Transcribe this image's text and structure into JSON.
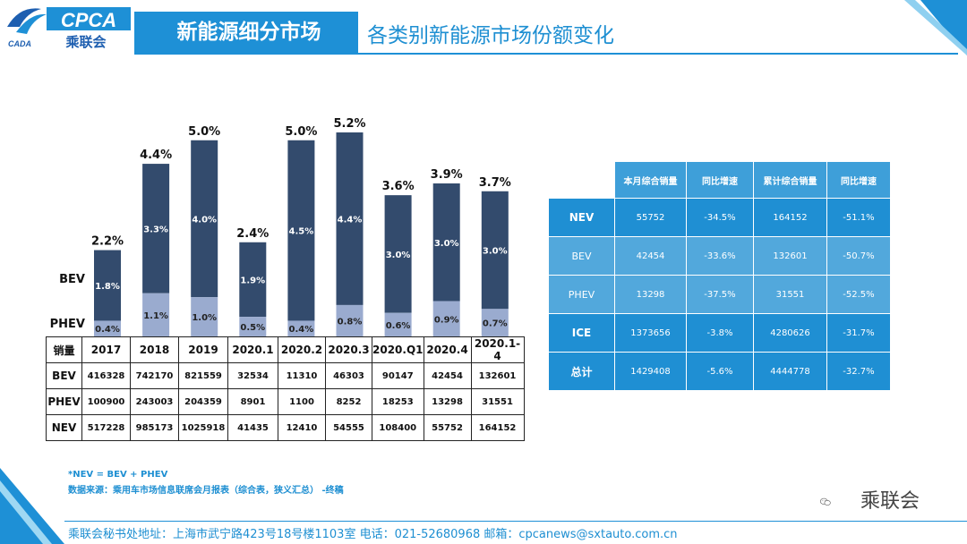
{
  "header": {
    "logo_text": "CPCA",
    "logo_sub": "乘联会",
    "logo_small": "CADA",
    "title": "新能源细分市场",
    "subtitle": "各类别新能源市场份额变化"
  },
  "chart_data": {
    "type": "bar",
    "stacked": true,
    "categories": [
      "2017",
      "2018",
      "2019",
      "2020.1",
      "2020.2",
      "2020.3",
      "2020.Q1",
      "2020.4",
      "2020.1-4"
    ],
    "series": [
      {
        "name": "PHEV",
        "values": [
          0.4,
          1.1,
          1.0,
          0.5,
          0.4,
          0.8,
          0.6,
          0.9,
          0.7
        ],
        "labels": [
          "0.4%",
          "1.1%",
          "1.0%",
          "0.5%",
          "0.4%",
          "0.8%",
          "0.6%",
          "0.9%",
          "0.7%"
        ],
        "color": "#9aabcf"
      },
      {
        "name": "BEV",
        "values": [
          1.8,
          3.3,
          4.0,
          1.9,
          4.5,
          4.4,
          3.0,
          3.0,
          3.0
        ],
        "labels": [
          "1.8%",
          "3.3%",
          "4.0%",
          "1.9%",
          "4.5%",
          "4.4%",
          "3.0%",
          "3.0%",
          "3.0%"
        ],
        "color": "#334b6d"
      }
    ],
    "totals": [
      2.2,
      4.4,
      5.0,
      2.4,
      5.0,
      5.2,
      3.6,
      3.9,
      3.7
    ],
    "total_labels": [
      "2.2%",
      "4.4%",
      "5.0%",
      "2.4%",
      "5.0%",
      "5.2%",
      "3.6%",
      "3.9%",
      "3.7%"
    ],
    "series_labels": {
      "bev": "BEV",
      "phev": "PHEV"
    },
    "ylim": [
      0,
      5.5
    ]
  },
  "sales_table": {
    "corner": "销量",
    "columns": [
      "2017",
      "2018",
      "2019",
      "2020.1",
      "2020.2",
      "2020.3",
      "2020.Q1",
      "2020.4",
      "2020.1-4"
    ],
    "rows": [
      {
        "label": "BEV",
        "values": [
          "416328",
          "742170",
          "821559",
          "32534",
          "11310",
          "46303",
          "90147",
          "42454",
          "132601"
        ]
      },
      {
        "label": "PHEV",
        "values": [
          "100900",
          "243003",
          "204359",
          "8901",
          "1100",
          "8252",
          "18253",
          "13298",
          "31551"
        ]
      },
      {
        "label": "NEV",
        "values": [
          "517228",
          "985173",
          "1025918",
          "41435",
          "12410",
          "54555",
          "108400",
          "55752",
          "164152"
        ]
      }
    ]
  },
  "summary_table": {
    "headers": [
      "本月综合销量",
      "同比增速",
      "累计综合销量",
      "同比增速"
    ],
    "rows": [
      {
        "label": "NEV",
        "values": [
          "55752",
          "-34.5%",
          "164152",
          "-51.1%"
        ]
      },
      {
        "label": "BEV",
        "values": [
          "42454",
          "-33.6%",
          "132601",
          "-50.7%"
        ]
      },
      {
        "label": "PHEV",
        "values": [
          "13298",
          "-37.5%",
          "31551",
          "-52.5%"
        ]
      },
      {
        "label": "ICE",
        "values": [
          "1373656",
          "-3.8%",
          "4280626",
          "-31.7%"
        ]
      },
      {
        "label": "总计",
        "values": [
          "1429408",
          "-5.6%",
          "4444778",
          "-32.7%"
        ]
      }
    ]
  },
  "notes": {
    "formula": "*NEV = BEV + PHEV",
    "source": "数据来源：乘用车市场信息联席会月报表（综合表，狭义汇总）  -终稿"
  },
  "wechat": {
    "label": "乘联会"
  },
  "footer": {
    "text": "乘联会秘书处地址：上海市武宁路423号18号楼1103室  电话：021-52680968   邮箱：cpcanews@sxtauto.com.cn"
  },
  "colors": {
    "accent": "#1e90d6",
    "bev": "#334b6d",
    "phev": "#9aabcf",
    "table_dark": "#1f8fd3",
    "table_light": "#52a8dc"
  }
}
